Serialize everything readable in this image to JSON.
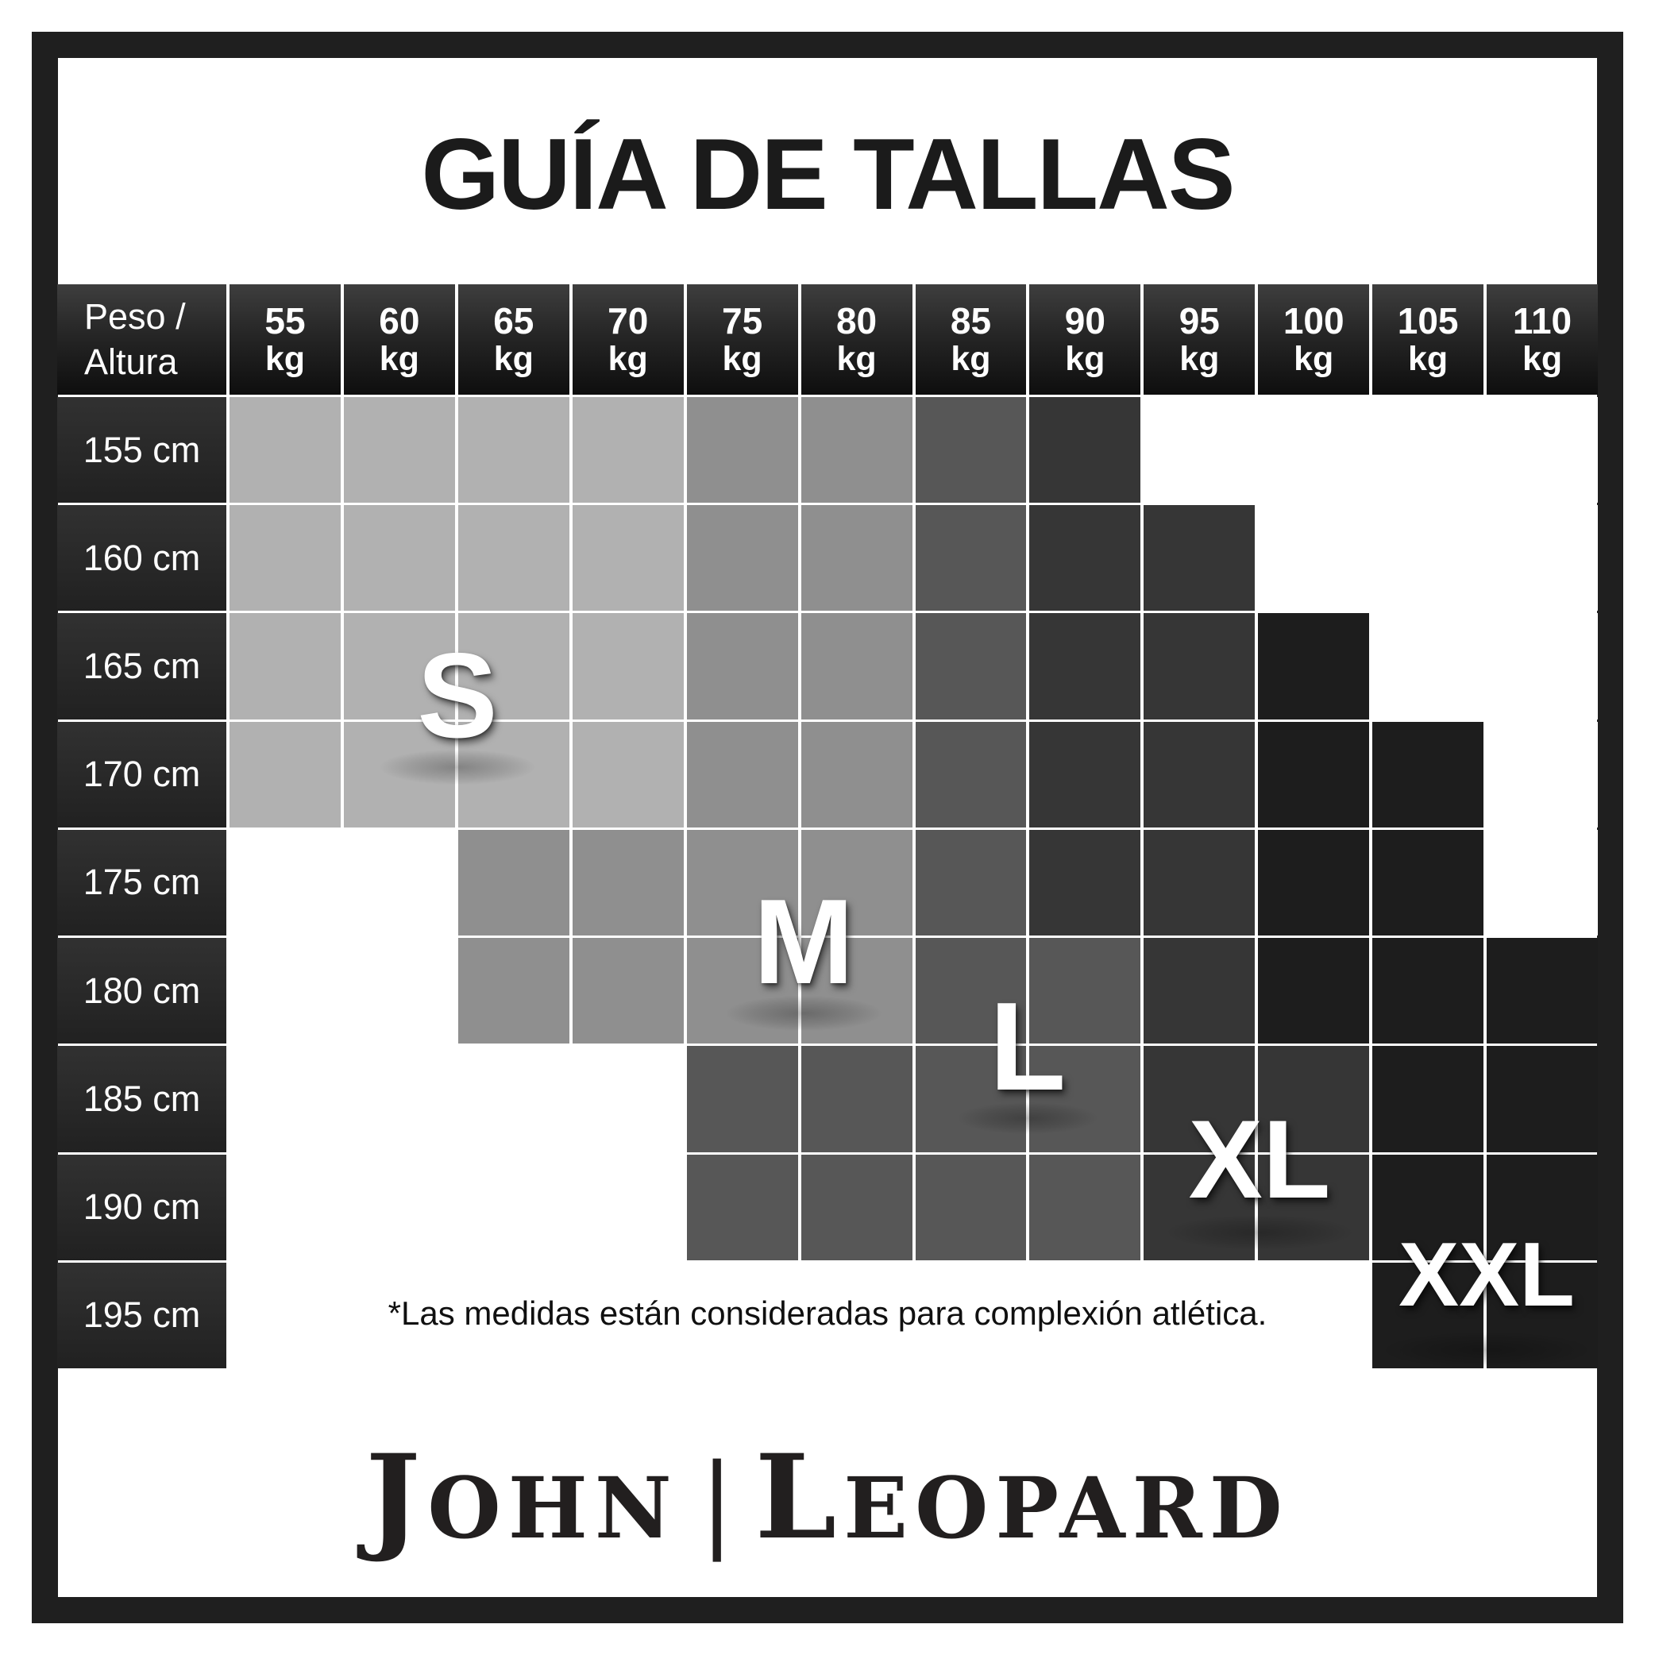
{
  "title": "GUÍA DE TALLAS",
  "chart_data": {
    "type": "heatmap",
    "title": "GUÍA DE TALLAS",
    "x_values_kg": [
      55,
      60,
      65,
      70,
      75,
      80,
      85,
      90,
      95,
      100,
      105,
      110
    ],
    "y_values_cm": [
      155,
      160,
      165,
      170,
      175,
      180,
      185,
      190,
      195
    ],
    "zones": [
      "S",
      "M",
      "L",
      "XL",
      "XXL"
    ],
    "zone_map": [
      [
        "S",
        "S",
        "S",
        "S",
        "M",
        "M",
        "L",
        "XL",
        "",
        "",
        "",
        ""
      ],
      [
        "S",
        "S",
        "S",
        "S",
        "M",
        "M",
        "L",
        "XL",
        "XL",
        "",
        "",
        ""
      ],
      [
        "S",
        "S",
        "S",
        "S",
        "M",
        "M",
        "L",
        "XL",
        "XL",
        "XXL",
        "",
        ""
      ],
      [
        "S",
        "S",
        "S",
        "S",
        "M",
        "M",
        "L",
        "XL",
        "XL",
        "XXL",
        "XXL",
        ""
      ],
      [
        "",
        "",
        "M",
        "M",
        "M",
        "M",
        "L",
        "XL",
        "XL",
        "XXL",
        "XXL",
        ""
      ],
      [
        "",
        "",
        "M",
        "M",
        "M",
        "M",
        "L",
        "L",
        "XL",
        "XXL",
        "XXL",
        "XXL"
      ],
      [
        "",
        "",
        "",
        "",
        "L",
        "L",
        "L",
        "L",
        "XL",
        "XL",
        "XXL",
        "XXL"
      ],
      [
        "",
        "",
        "",
        "",
        "L",
        "L",
        "L",
        "L",
        "XL",
        "XL",
        "XXL",
        "XXL"
      ],
      [
        "",
        "",
        "",
        "",
        "",
        "",
        "",
        "",
        "",
        "",
        "XXL",
        "XXL"
      ]
    ]
  },
  "table": {
    "corner_line1": "Peso /",
    "corner_line2": "Altura",
    "weight_unit": "kg",
    "height_unit": "cm"
  },
  "zone_colors": {
    "S": "#b1b1b1",
    "M": "#8f8f8f",
    "L": "#575757",
    "XL": "#363636",
    "XXL": "#1d1d1d",
    "none": "#ffffff"
  },
  "footnote": "*Las medidas están consideradas para complexión atlética.",
  "brand": {
    "initial1": "J",
    "rest1": "OHN",
    "separator": "|",
    "initial2": "L",
    "rest2": "EOPARD"
  }
}
